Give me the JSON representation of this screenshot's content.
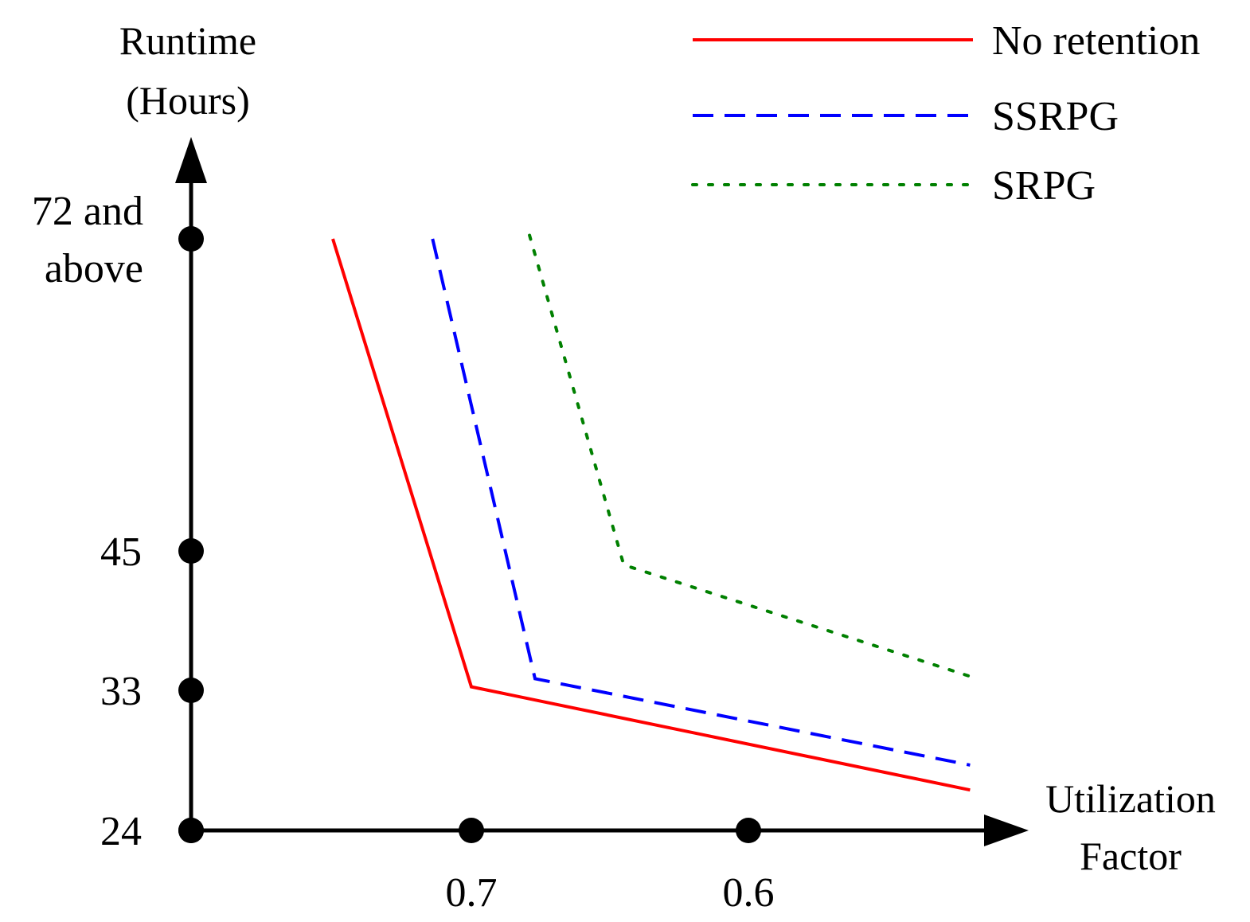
{
  "chart_data": {
    "type": "line",
    "title": "",
    "xlabel": [
      "Utilization",
      "Factor"
    ],
    "ylabel": [
      "Runtime",
      "(Hours)"
    ],
    "x_ticks": [
      {
        "label": "0.7"
      },
      {
        "label": "0.6"
      }
    ],
    "y_ticks": [
      {
        "label": [
          "24"
        ],
        "value": 24
      },
      {
        "label": [
          "33"
        ],
        "value": 33
      },
      {
        "label": [
          "45"
        ],
        "value": 45
      },
      {
        "label": [
          "72 and",
          "above"
        ],
        "value": 72
      }
    ],
    "legend_position": "top-right",
    "series": [
      {
        "name": "No retention",
        "color": "#ff0000",
        "style": "solid",
        "points": [
          {
            "x": 0.75,
            "y": 72
          },
          {
            "x": 0.7,
            "y": 33.3
          },
          {
            "x": 0.52,
            "y": 26.6
          }
        ]
      },
      {
        "name": "SSRPG",
        "color": "#0000ff",
        "style": "dashed",
        "points": [
          {
            "x": 0.714,
            "y": 72
          },
          {
            "x": 0.677,
            "y": 34
          },
          {
            "x": 0.52,
            "y": 28.2
          }
        ]
      },
      {
        "name": "SRPG",
        "color": "#008000",
        "style": "dotted",
        "points": [
          {
            "x": 0.679,
            "y": 72.3
          },
          {
            "x": 0.645,
            "y": 43.8
          },
          {
            "x": 0.52,
            "y": 34.2
          }
        ]
      }
    ]
  }
}
